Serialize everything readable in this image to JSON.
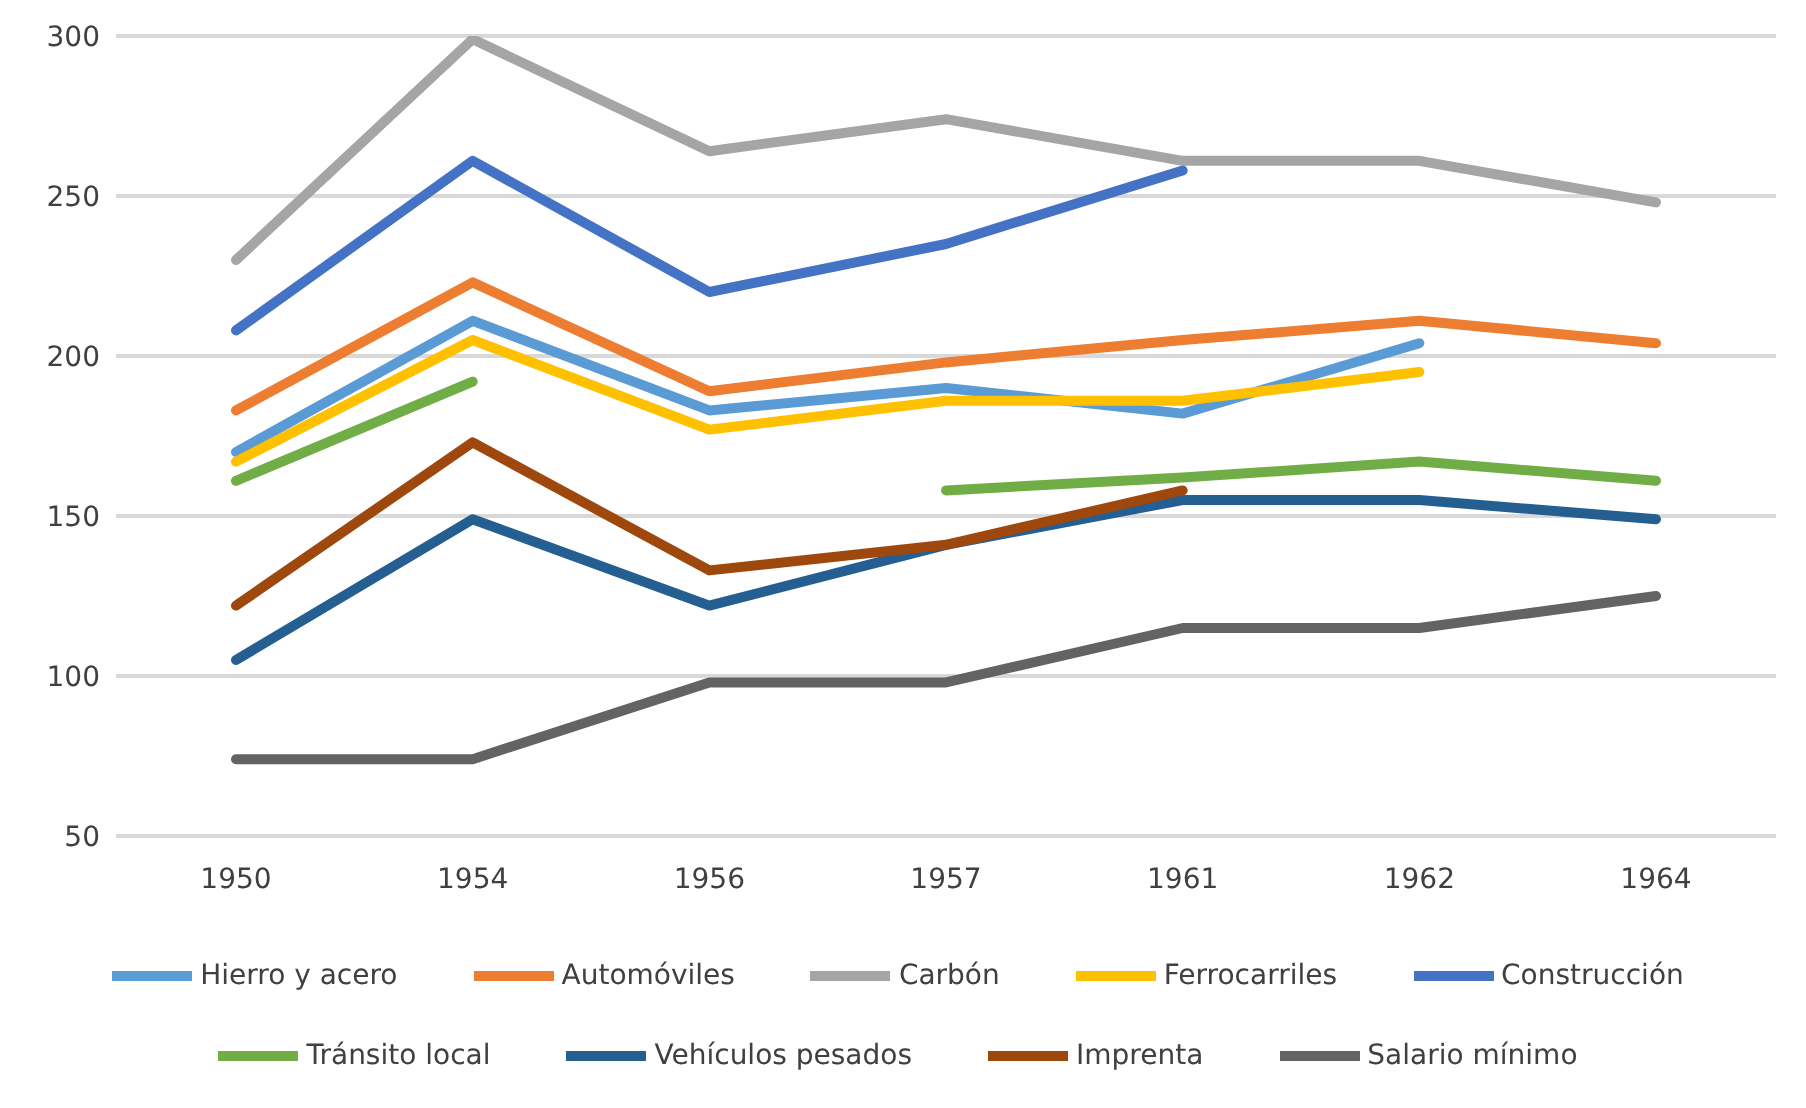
{
  "chart_data": {
    "type": "line",
    "categories": [
      "1950",
      "1954",
      "1956",
      "1957",
      "1961",
      "1962",
      "1964"
    ],
    "ylim": [
      50,
      300
    ],
    "yticks": [
      50,
      100,
      150,
      200,
      250,
      300
    ],
    "grid": "y",
    "legend": "bottom",
    "marker": "none",
    "line_style": "solid",
    "series": [
      {
        "name": "Hierro y acero",
        "color": "#5b9bd5",
        "values": [
          170,
          211,
          183,
          190,
          182,
          204,
          null
        ]
      },
      {
        "name": "Automóviles",
        "color": "#ed7d31",
        "values": [
          183,
          223,
          189,
          198,
          205,
          211,
          204
        ]
      },
      {
        "name": "Carbón",
        "color": "#a5a5a5",
        "values": [
          230,
          299,
          264,
          274,
          261,
          261,
          248
        ]
      },
      {
        "name": "Ferrocarriles",
        "color": "#ffc000",
        "values": [
          167,
          205,
          177,
          186,
          186,
          195,
          null
        ]
      },
      {
        "name": "Construcción",
        "color": "#4472c4",
        "values": [
          208,
          261,
          220,
          235,
          258,
          null,
          null
        ]
      },
      {
        "name": "Tránsito local",
        "color": "#70ad47",
        "values": [
          161,
          192,
          null,
          158,
          162,
          167,
          161
        ]
      },
      {
        "name": "Vehículos pesados",
        "color": "#255e91",
        "values": [
          105,
          149,
          122,
          141,
          155,
          155,
          149
        ]
      },
      {
        "name": "Imprenta",
        "color": "#9e480e",
        "values": [
          122,
          173,
          133,
          141,
          158,
          null,
          null
        ]
      },
      {
        "name": "Salario mínimo",
        "color": "#636363",
        "values": [
          74,
          74,
          98,
          98,
          115,
          115,
          125
        ]
      }
    ]
  }
}
